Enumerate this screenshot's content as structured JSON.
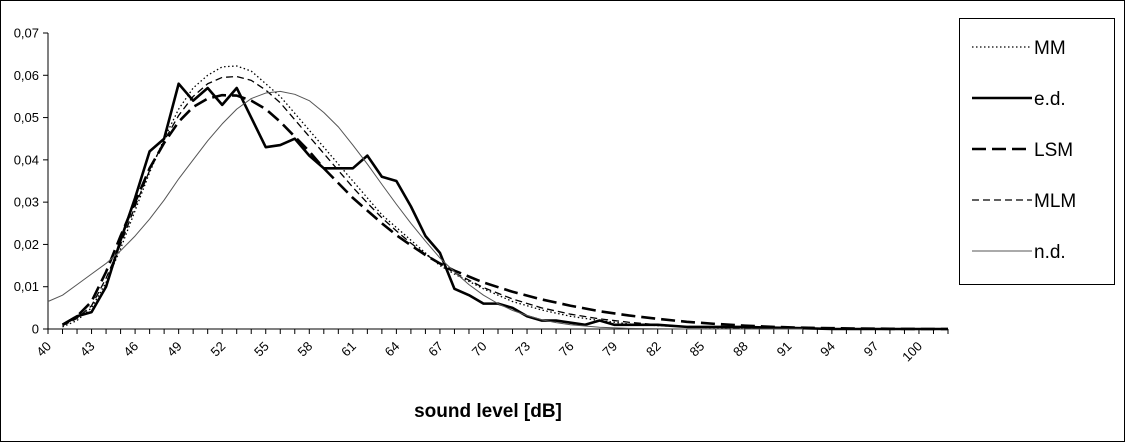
{
  "chart_data": {
    "type": "line",
    "title": "",
    "xlabel": "sound level [dB]",
    "ylabel": "",
    "xlim": [
      40,
      102
    ],
    "ylim": [
      0,
      0.07
    ],
    "y_ticks": [
      0,
      0.01,
      0.02,
      0.03,
      0.04,
      0.05,
      0.06,
      0.07
    ],
    "y_tick_labels": [
      "0",
      "0,01",
      "0,02",
      "0,03",
      "0,04",
      "0,05",
      "0,06",
      "0,07"
    ],
    "x_tick_labels": [
      "40",
      "43",
      "46",
      "49",
      "52",
      "55",
      "58",
      "61",
      "64",
      "67",
      "70",
      "73",
      "76",
      "79",
      "82",
      "85",
      "88",
      "91",
      "94",
      "97",
      "100"
    ],
    "grid": false,
    "legend_position": "right",
    "series": [
      {
        "name": "MM",
        "style": "dotted",
        "color": "#000000",
        "x": [
          41,
          42,
          43,
          44,
          45,
          46,
          47,
          48,
          49,
          50,
          51,
          52,
          53,
          54,
          55,
          56,
          57,
          58,
          59,
          60,
          61,
          62,
          63,
          64,
          65,
          66,
          67,
          68,
          70,
          72,
          74,
          76,
          78,
          80,
          82,
          84,
          86,
          88,
          90,
          92,
          94,
          96,
          98,
          100,
          102
        ],
        "y": [
          0.0005,
          0.002,
          0.005,
          0.011,
          0.019,
          0.028,
          0.037,
          0.045,
          0.052,
          0.057,
          0.06,
          0.062,
          0.0622,
          0.061,
          0.058,
          0.055,
          0.051,
          0.047,
          0.043,
          0.039,
          0.035,
          0.031,
          0.027,
          0.024,
          0.021,
          0.018,
          0.015,
          0.013,
          0.0095,
          0.0065,
          0.0045,
          0.003,
          0.002,
          0.0012,
          0.0008,
          0.0005,
          0.0003,
          0.0002,
          0.0001,
          5e-05,
          0,
          0,
          0,
          0,
          0
        ]
      },
      {
        "name": "e.d.",
        "style": "solid-thick",
        "color": "#000000",
        "x": [
          41,
          42,
          43,
          44,
          45,
          46,
          47,
          48,
          49,
          50,
          51,
          52,
          53,
          54,
          55,
          56,
          57,
          58,
          59,
          60,
          61,
          62,
          63,
          64,
          65,
          66,
          67,
          68,
          69,
          70,
          71,
          72,
          73,
          74,
          75,
          76,
          77,
          78,
          79,
          80,
          81,
          82,
          84,
          86,
          88,
          90,
          92,
          94,
          96,
          98,
          100,
          102
        ],
        "y": [
          0.001,
          0.003,
          0.004,
          0.01,
          0.021,
          0.031,
          0.042,
          0.045,
          0.058,
          0.054,
          0.057,
          0.053,
          0.057,
          0.05,
          0.043,
          0.0435,
          0.045,
          0.041,
          0.038,
          0.038,
          0.038,
          0.041,
          0.036,
          0.035,
          0.029,
          0.022,
          0.018,
          0.0095,
          0.008,
          0.006,
          0.006,
          0.005,
          0.003,
          0.002,
          0.002,
          0.0015,
          0.001,
          0.002,
          0.001,
          0.001,
          0.001,
          0.001,
          0.0005,
          0.0005,
          0.0005,
          0.0003,
          0.0002,
          0,
          0,
          0,
          0,
          0
        ]
      },
      {
        "name": "LSM",
        "style": "long-dash",
        "color": "#000000",
        "x": [
          41,
          42,
          43,
          44,
          45,
          46,
          47,
          48,
          49,
          50,
          51,
          52,
          53,
          54,
          55,
          56,
          57,
          58,
          59,
          60,
          61,
          62,
          63,
          64,
          65,
          66,
          67,
          68,
          70,
          72,
          74,
          76,
          78,
          80,
          82,
          84,
          86,
          88,
          90,
          92,
          94,
          96,
          98,
          100,
          102
        ],
        "y": [
          0.001,
          0.003,
          0.0065,
          0.0135,
          0.022,
          0.03,
          0.038,
          0.044,
          0.049,
          0.0525,
          0.0545,
          0.0553,
          0.0552,
          0.054,
          0.052,
          0.049,
          0.0455,
          0.042,
          0.038,
          0.0345,
          0.031,
          0.028,
          0.025,
          0.0222,
          0.0198,
          0.0175,
          0.0155,
          0.0138,
          0.011,
          0.0088,
          0.007,
          0.0055,
          0.0042,
          0.0032,
          0.0024,
          0.0017,
          0.0012,
          0.0008,
          0.0005,
          0.0003,
          0.0002,
          0.0001,
          5e-05,
          0,
          0
        ]
      },
      {
        "name": "MLM",
        "style": "dash",
        "color": "#000000",
        "x": [
          41,
          42,
          43,
          44,
          45,
          46,
          47,
          48,
          49,
          50,
          51,
          52,
          53,
          54,
          55,
          56,
          57,
          58,
          59,
          60,
          61,
          62,
          63,
          64,
          65,
          66,
          67,
          68,
          70,
          72,
          74,
          76,
          78,
          80,
          82,
          84,
          86,
          88,
          90,
          92,
          94,
          96,
          98,
          100,
          102
        ],
        "y": [
          0.0008,
          0.0025,
          0.0055,
          0.012,
          0.02,
          0.029,
          0.0375,
          0.0445,
          0.0505,
          0.055,
          0.058,
          0.0595,
          0.0597,
          0.0588,
          0.0565,
          0.0535,
          0.0495,
          0.0455,
          0.0415,
          0.0375,
          0.0335,
          0.0298,
          0.0263,
          0.0232,
          0.0203,
          0.0177,
          0.0154,
          0.0133,
          0.0098,
          0.0071,
          0.005,
          0.0035,
          0.0024,
          0.0016,
          0.001,
          0.0006,
          0.0004,
          0.0002,
          0.0001,
          5e-05,
          0,
          0,
          0,
          0,
          0
        ]
      },
      {
        "name": "n.d.",
        "style": "solid-thin",
        "color": "#555555",
        "x": [
          40,
          41,
          42,
          43,
          44,
          45,
          46,
          47,
          48,
          49,
          50,
          51,
          52,
          53,
          54,
          55,
          56,
          57,
          58,
          59,
          60,
          61,
          62,
          63,
          64,
          65,
          66,
          67,
          68,
          69,
          70,
          71,
          72,
          73,
          74,
          75,
          76,
          78,
          80,
          82,
          84,
          86,
          88,
          90,
          92
        ],
        "y": [
          0.0065,
          0.008,
          0.0105,
          0.013,
          0.0155,
          0.0185,
          0.022,
          0.026,
          0.0305,
          0.0355,
          0.04,
          0.0445,
          0.0485,
          0.052,
          0.0545,
          0.0558,
          0.0562,
          0.0555,
          0.054,
          0.0512,
          0.0478,
          0.0435,
          0.039,
          0.0342,
          0.0295,
          0.025,
          0.0208,
          0.0168,
          0.0135,
          0.0105,
          0.008,
          0.006,
          0.0044,
          0.0032,
          0.0022,
          0.0015,
          0.001,
          0.0004,
          0.00015,
          5e-05,
          0,
          0,
          0,
          0,
          0
        ]
      }
    ]
  }
}
